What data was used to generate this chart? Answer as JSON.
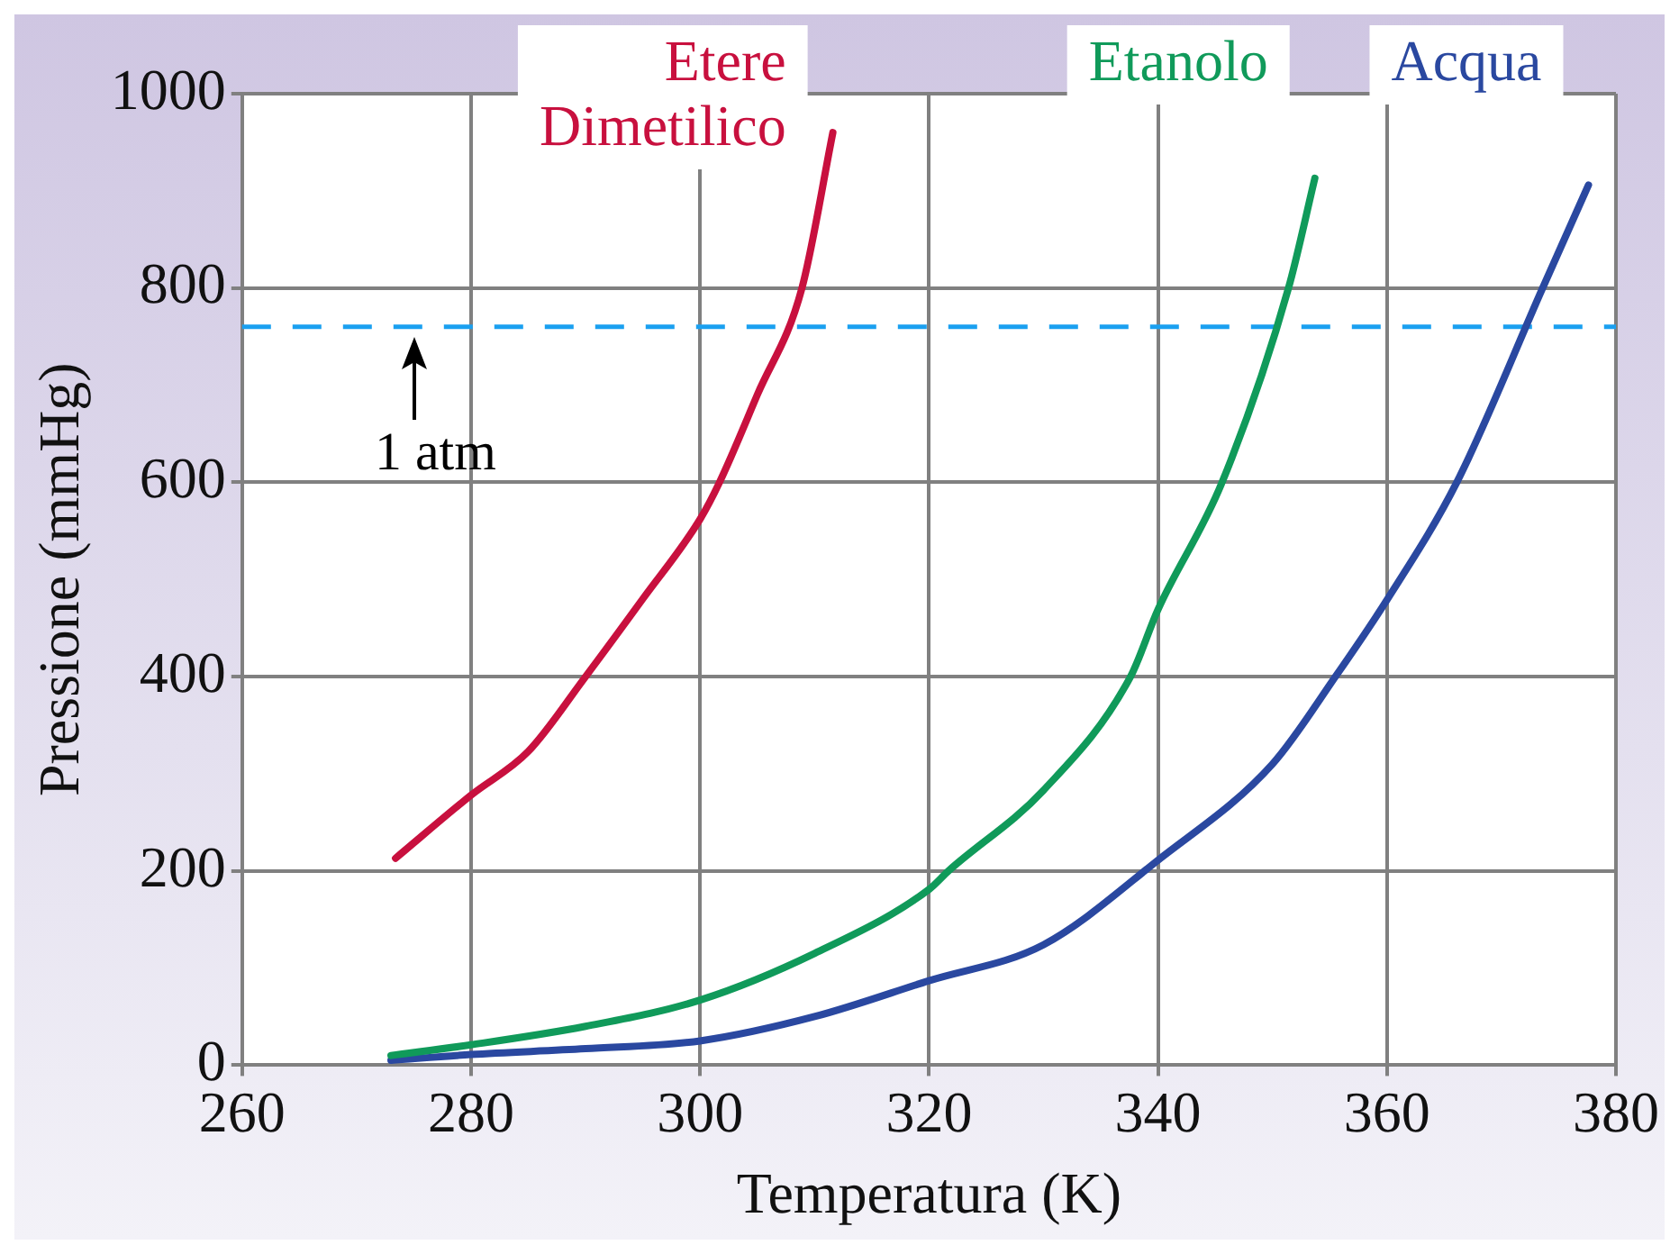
{
  "chart_data": {
    "type": "line",
    "xlabel": "Temperatura (K)",
    "ylabel": "Pressione (mmHg)",
    "xlim": [
      260,
      380
    ],
    "xticks": [
      260,
      280,
      300,
      320,
      340,
      360,
      380
    ],
    "ylim": [
      0,
      1000
    ],
    "yticks": [
      0,
      200,
      400,
      600,
      800,
      1000
    ],
    "grid": true,
    "legend": false,
    "marker": "none",
    "line_style": "solid",
    "ref_lines": [
      {
        "axis": "y",
        "value": 760,
        "label": "1 atm",
        "color": "#1aa0f0",
        "line_style": "dashed"
      }
    ],
    "series": [
      {
        "name": "Etere Dimetilico",
        "color": "#c8103e",
        "x": [
          273.4,
          280,
          285,
          290,
          295,
          300,
          301.7,
          305,
          308.9,
          311.6
        ],
        "values": [
          213,
          278,
          323,
          400,
          480,
          562,
          600,
          690,
          800,
          960
        ]
      },
      {
        "name": "Etanolo",
        "color": "#109a5a",
        "x": [
          273,
          280,
          290,
          300,
          310,
          320,
          321.7,
          330,
          337.6,
          340,
          345.6,
          351.4,
          353.7
        ],
        "values": [
          10,
          21,
          40,
          67,
          115,
          181,
          200,
          283,
          400,
          469,
          600,
          800,
          913
        ]
      },
      {
        "name": "Acqua",
        "color": "#2a48a0",
        "x": [
          273,
          280,
          290,
          300,
          310,
          320,
          330,
          340,
          350,
          355.5,
          360,
          366.1,
          373.6,
          377.6
        ],
        "values": [
          5,
          11,
          17,
          25,
          50,
          87,
          124,
          211,
          310,
          400,
          479,
          600,
          800,
          906
        ]
      }
    ]
  }
}
